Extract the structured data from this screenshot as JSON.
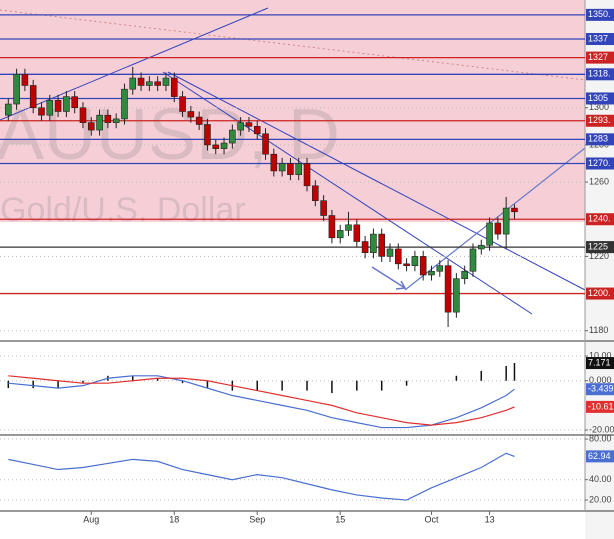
{
  "chart_data": [
    {
      "type": "candlestick",
      "title": "AUUSD, D",
      "subtitle": "Gold/U.S. Dollar",
      "open": [
        1296,
        1302,
        1318,
        1312,
        1300,
        1296,
        1304,
        1298,
        1306,
        1300,
        1292,
        1288,
        1296,
        1292,
        1294,
        1310,
        1316,
        1312,
        1314,
        1312,
        1316,
        1306,
        1298,
        1295,
        1291,
        1280,
        1278,
        1281,
        1288,
        1292,
        1290,
        1286,
        1275,
        1266,
        1270,
        1264,
        1270,
        1258,
        1250,
        1242,
        1230,
        1234,
        1237,
        1228,
        1222,
        1232,
        1220,
        1224,
        1216,
        1215,
        1220,
        1210,
        1212,
        1215,
        1190,
        1208,
        1212,
        1224,
        1226,
        1238,
        1232,
        1246
      ],
      "high": [
        1305,
        1321,
        1321,
        1315,
        1303,
        1307,
        1307,
        1309,
        1309,
        1303,
        1295,
        1299,
        1299,
        1297,
        1313,
        1322,
        1319,
        1317,
        1317,
        1319,
        1319,
        1309,
        1301,
        1298,
        1294,
        1283,
        1284,
        1291,
        1295,
        1295,
        1293,
        1289,
        1278,
        1273,
        1273,
        1273,
        1273,
        1261,
        1253,
        1245,
        1237,
        1244,
        1240,
        1231,
        1235,
        1235,
        1227,
        1227,
        1219,
        1223,
        1223,
        1215,
        1218,
        1218,
        1211,
        1215,
        1227,
        1229,
        1241,
        1241,
        1252,
        1248
      ],
      "low": [
        1293,
        1299,
        1309,
        1297,
        1293,
        1293,
        1295,
        1295,
        1297,
        1289,
        1285,
        1285,
        1289,
        1289,
        1291,
        1307,
        1309,
        1309,
        1309,
        1309,
        1303,
        1295,
        1292,
        1288,
        1277,
        1275,
        1275,
        1278,
        1285,
        1287,
        1283,
        1272,
        1263,
        1263,
        1261,
        1261,
        1255,
        1247,
        1239,
        1227,
        1227,
        1231,
        1225,
        1219,
        1219,
        1217,
        1217,
        1213,
        1212,
        1212,
        1207,
        1207,
        1209,
        1182,
        1187,
        1205,
        1209,
        1221,
        1223,
        1229,
        1224,
        1240
      ],
      "close": [
        1302,
        1318,
        1312,
        1300,
        1296,
        1304,
        1298,
        1306,
        1300,
        1292,
        1288,
        1296,
        1292,
        1294,
        1310,
        1316,
        1312,
        1314,
        1312,
        1316,
        1306,
        1298,
        1295,
        1291,
        1280,
        1278,
        1281,
        1288,
        1292,
        1290,
        1286,
        1275,
        1266,
        1270,
        1264,
        1270,
        1258,
        1250,
        1242,
        1230,
        1234,
        1237,
        1228,
        1222,
        1232,
        1220,
        1224,
        1216,
        1215,
        1220,
        1210,
        1212,
        1215,
        1190,
        1208,
        1212,
        1224,
        1226,
        1238,
        1232,
        1246,
        1244
      ],
      "up_color": "#2e8b3e",
      "down_color": "#c00000",
      "xlim": [
        -1,
        69.5
      ],
      "ylim": [
        1175,
        1358
      ],
      "xticks": [
        {
          "value": 10,
          "label": "Aug"
        },
        {
          "value": 20,
          "label": "18"
        },
        {
          "value": 30,
          "label": "Sep"
        },
        {
          "value": 40,
          "label": "15"
        },
        {
          "value": 51,
          "label": "Oct"
        },
        {
          "value": 58,
          "label": "13"
        }
      ],
      "yticks": [
        1180,
        1220,
        1260,
        1280,
        1300
      ],
      "levels": [
        {
          "value": 1350,
          "label": "1350.",
          "color": "#3344bb"
        },
        {
          "value": 1337,
          "label": "1337",
          "color": "#3344bb"
        },
        {
          "value": 1327,
          "label": "1327",
          "color": "#cc2222"
        },
        {
          "value": 1318,
          "label": "1318.",
          "color": "#3344bb"
        },
        {
          "value": 1305,
          "label": "1305",
          "color": "#3344bb"
        },
        {
          "value": 1293,
          "label": "1293.",
          "color": "#cc2222"
        },
        {
          "value": 1283,
          "label": "1283",
          "color": "#3344bb"
        },
        {
          "value": 1270,
          "label": "1270.",
          "color": "#3344bb"
        },
        {
          "value": 1240,
          "label": "1240.",
          "color": "#cc2222"
        },
        {
          "value": 1225,
          "label": "1225",
          "color": "#333333"
        },
        {
          "value": 1200,
          "label": "1200.",
          "color": "#cc2222"
        }
      ]
    },
    {
      "type": "macd",
      "x": [
        0,
        3,
        6,
        9,
        12,
        15,
        18,
        21,
        24,
        27,
        30,
        33,
        36,
        39,
        42,
        45,
        48,
        51,
        54,
        57,
        60,
        61
      ],
      "values": [
        -3,
        -3,
        -3,
        -1,
        2,
        2,
        1,
        -1,
        -3,
        -4,
        -4,
        -4,
        -4,
        -5,
        -4,
        -4,
        -2,
        0,
        2,
        4,
        6,
        7.171
      ],
      "value_labels": [
        null,
        null,
        null,
        null,
        null,
        null,
        null,
        null,
        null,
        null,
        null,
        null,
        null,
        null,
        null,
        null,
        null,
        null,
        null,
        null,
        null,
        "7.171"
      ],
      "color": "#111111",
      "series": [
        {
          "color": "#4a6fd0",
          "values": [
            -1,
            -2,
            -3,
            -2,
            1,
            2,
            2,
            0,
            -3,
            -6,
            -8,
            -10,
            -12,
            -15,
            -17,
            -19,
            -19,
            -18,
            -15,
            -11,
            -6,
            -3.439
          ],
          "value_labels": [
            null,
            null,
            null,
            null,
            null,
            null,
            null,
            null,
            null,
            null,
            null,
            null,
            null,
            null,
            null,
            null,
            null,
            null,
            null,
            null,
            null,
            "-3.439"
          ]
        },
        {
          "color": "#e03030",
          "values": [
            2,
            1,
            0,
            -1,
            -1,
            0,
            1,
            1,
            0,
            -2,
            -4,
            -6,
            -8,
            -10,
            -13,
            -15,
            -17,
            -18,
            -17,
            -15,
            -12,
            -10.61
          ],
          "value_labels": [
            null,
            null,
            null,
            null,
            null,
            null,
            null,
            null,
            null,
            null,
            null,
            null,
            null,
            null,
            null,
            null,
            null,
            null,
            null,
            null,
            null,
            "-10.61"
          ]
        }
      ],
      "xlim": [
        -1,
        69.5
      ],
      "ylim": [
        -21.2,
        15.3
      ],
      "yticks": [
        {
          "value": 10,
          "label": "10.00"
        },
        {
          "value": 0,
          "label": "0.000"
        },
        {
          "value": -20,
          "label": "-20.00"
        }
      ]
    },
    {
      "type": "line",
      "x": [
        0,
        3,
        6,
        9,
        12,
        15,
        18,
        21,
        24,
        27,
        30,
        33,
        36,
        39,
        42,
        45,
        48,
        51,
        54,
        57,
        60,
        61
      ],
      "series": [
        {
          "color": "#4a6fd0",
          "values": [
            60,
            55,
            50,
            52,
            56,
            60,
            58,
            50,
            45,
            40,
            45,
            42,
            36,
            30,
            25,
            22,
            20,
            32,
            42,
            52,
            66,
            62.94
          ],
          "value_labels": [
            null,
            null,
            null,
            null,
            null,
            null,
            null,
            null,
            null,
            null,
            null,
            null,
            null,
            null,
            null,
            null,
            null,
            null,
            null,
            null,
            null,
            "62.94"
          ]
        }
      ],
      "xlim": [
        -1,
        69.5
      ],
      "ylim": [
        10.2,
        82
      ],
      "yticks": [
        {
          "value": 80,
          "label": "80.00"
        },
        {
          "value": 40,
          "label": "40.00"
        },
        {
          "value": 20,
          "label": "20.00"
        }
      ]
    }
  ]
}
